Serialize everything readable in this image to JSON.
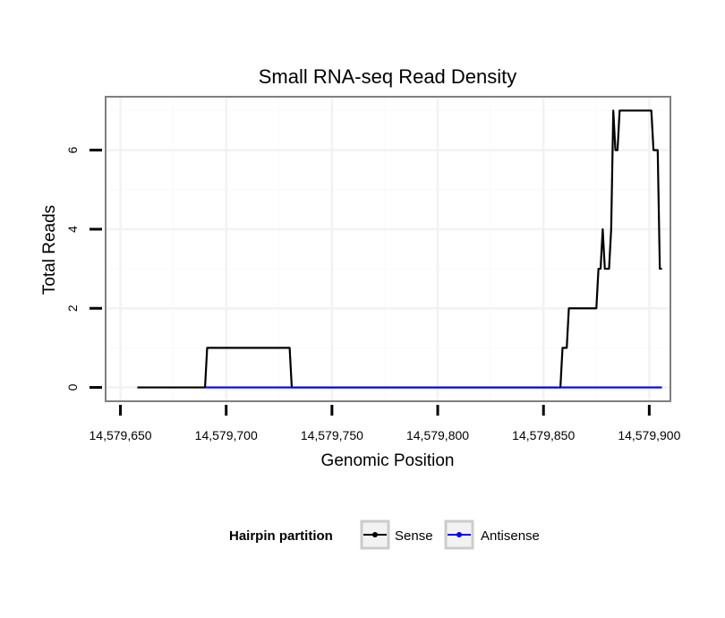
{
  "chart_data": {
    "type": "line",
    "title": "Small RNA-seq Read Density",
    "xlabel": "Genomic Position",
    "ylabel": "Total Reads",
    "xlim": [
      14579643,
      14579910
    ],
    "ylim": [
      -0.35,
      7.35
    ],
    "x_ticks": [
      14579650,
      14579700,
      14579750,
      14579800,
      14579850,
      14579900
    ],
    "x_tick_labels": [
      "14,579,650",
      "14,579,700",
      "14,579,750",
      "14,579,800",
      "14,579,850",
      "14,579,900"
    ],
    "y_ticks": [
      0,
      2,
      4,
      6
    ],
    "y_tick_labels": [
      "0",
      "2",
      "4",
      "6"
    ],
    "grid": true,
    "legend": {
      "title": "Hairpin partition",
      "position": "bottom",
      "entries": [
        {
          "name": "Sense",
          "color": "#000000"
        },
        {
          "name": "Antisense",
          "color": "#0000ff"
        }
      ]
    },
    "series": [
      {
        "name": "Sense",
        "color": "#000000",
        "x": [
          14579658,
          14579690,
          14579691,
          14579730,
          14579731,
          14579858,
          14579859,
          14579860,
          14579861,
          14579862,
          14579875,
          14579876,
          14579877,
          14579878,
          14579879,
          14579880,
          14579881,
          14579882,
          14579883,
          14579884,
          14579885,
          14579886,
          14579887,
          14579888,
          14579901,
          14579902,
          14579904,
          14579905,
          14579906
        ],
        "y": [
          0,
          0,
          1,
          1,
          0,
          0,
          1,
          1,
          1,
          2,
          2,
          3,
          3,
          4,
          3,
          3,
          3,
          4,
          7,
          6,
          6,
          7,
          7,
          7,
          7,
          6,
          6,
          3,
          3
        ]
      },
      {
        "name": "Antisense",
        "color": "#0000ff",
        "x": [
          14579690,
          14579730,
          14579858,
          14579906
        ],
        "y": [
          0,
          0,
          0,
          0
        ]
      }
    ]
  }
}
